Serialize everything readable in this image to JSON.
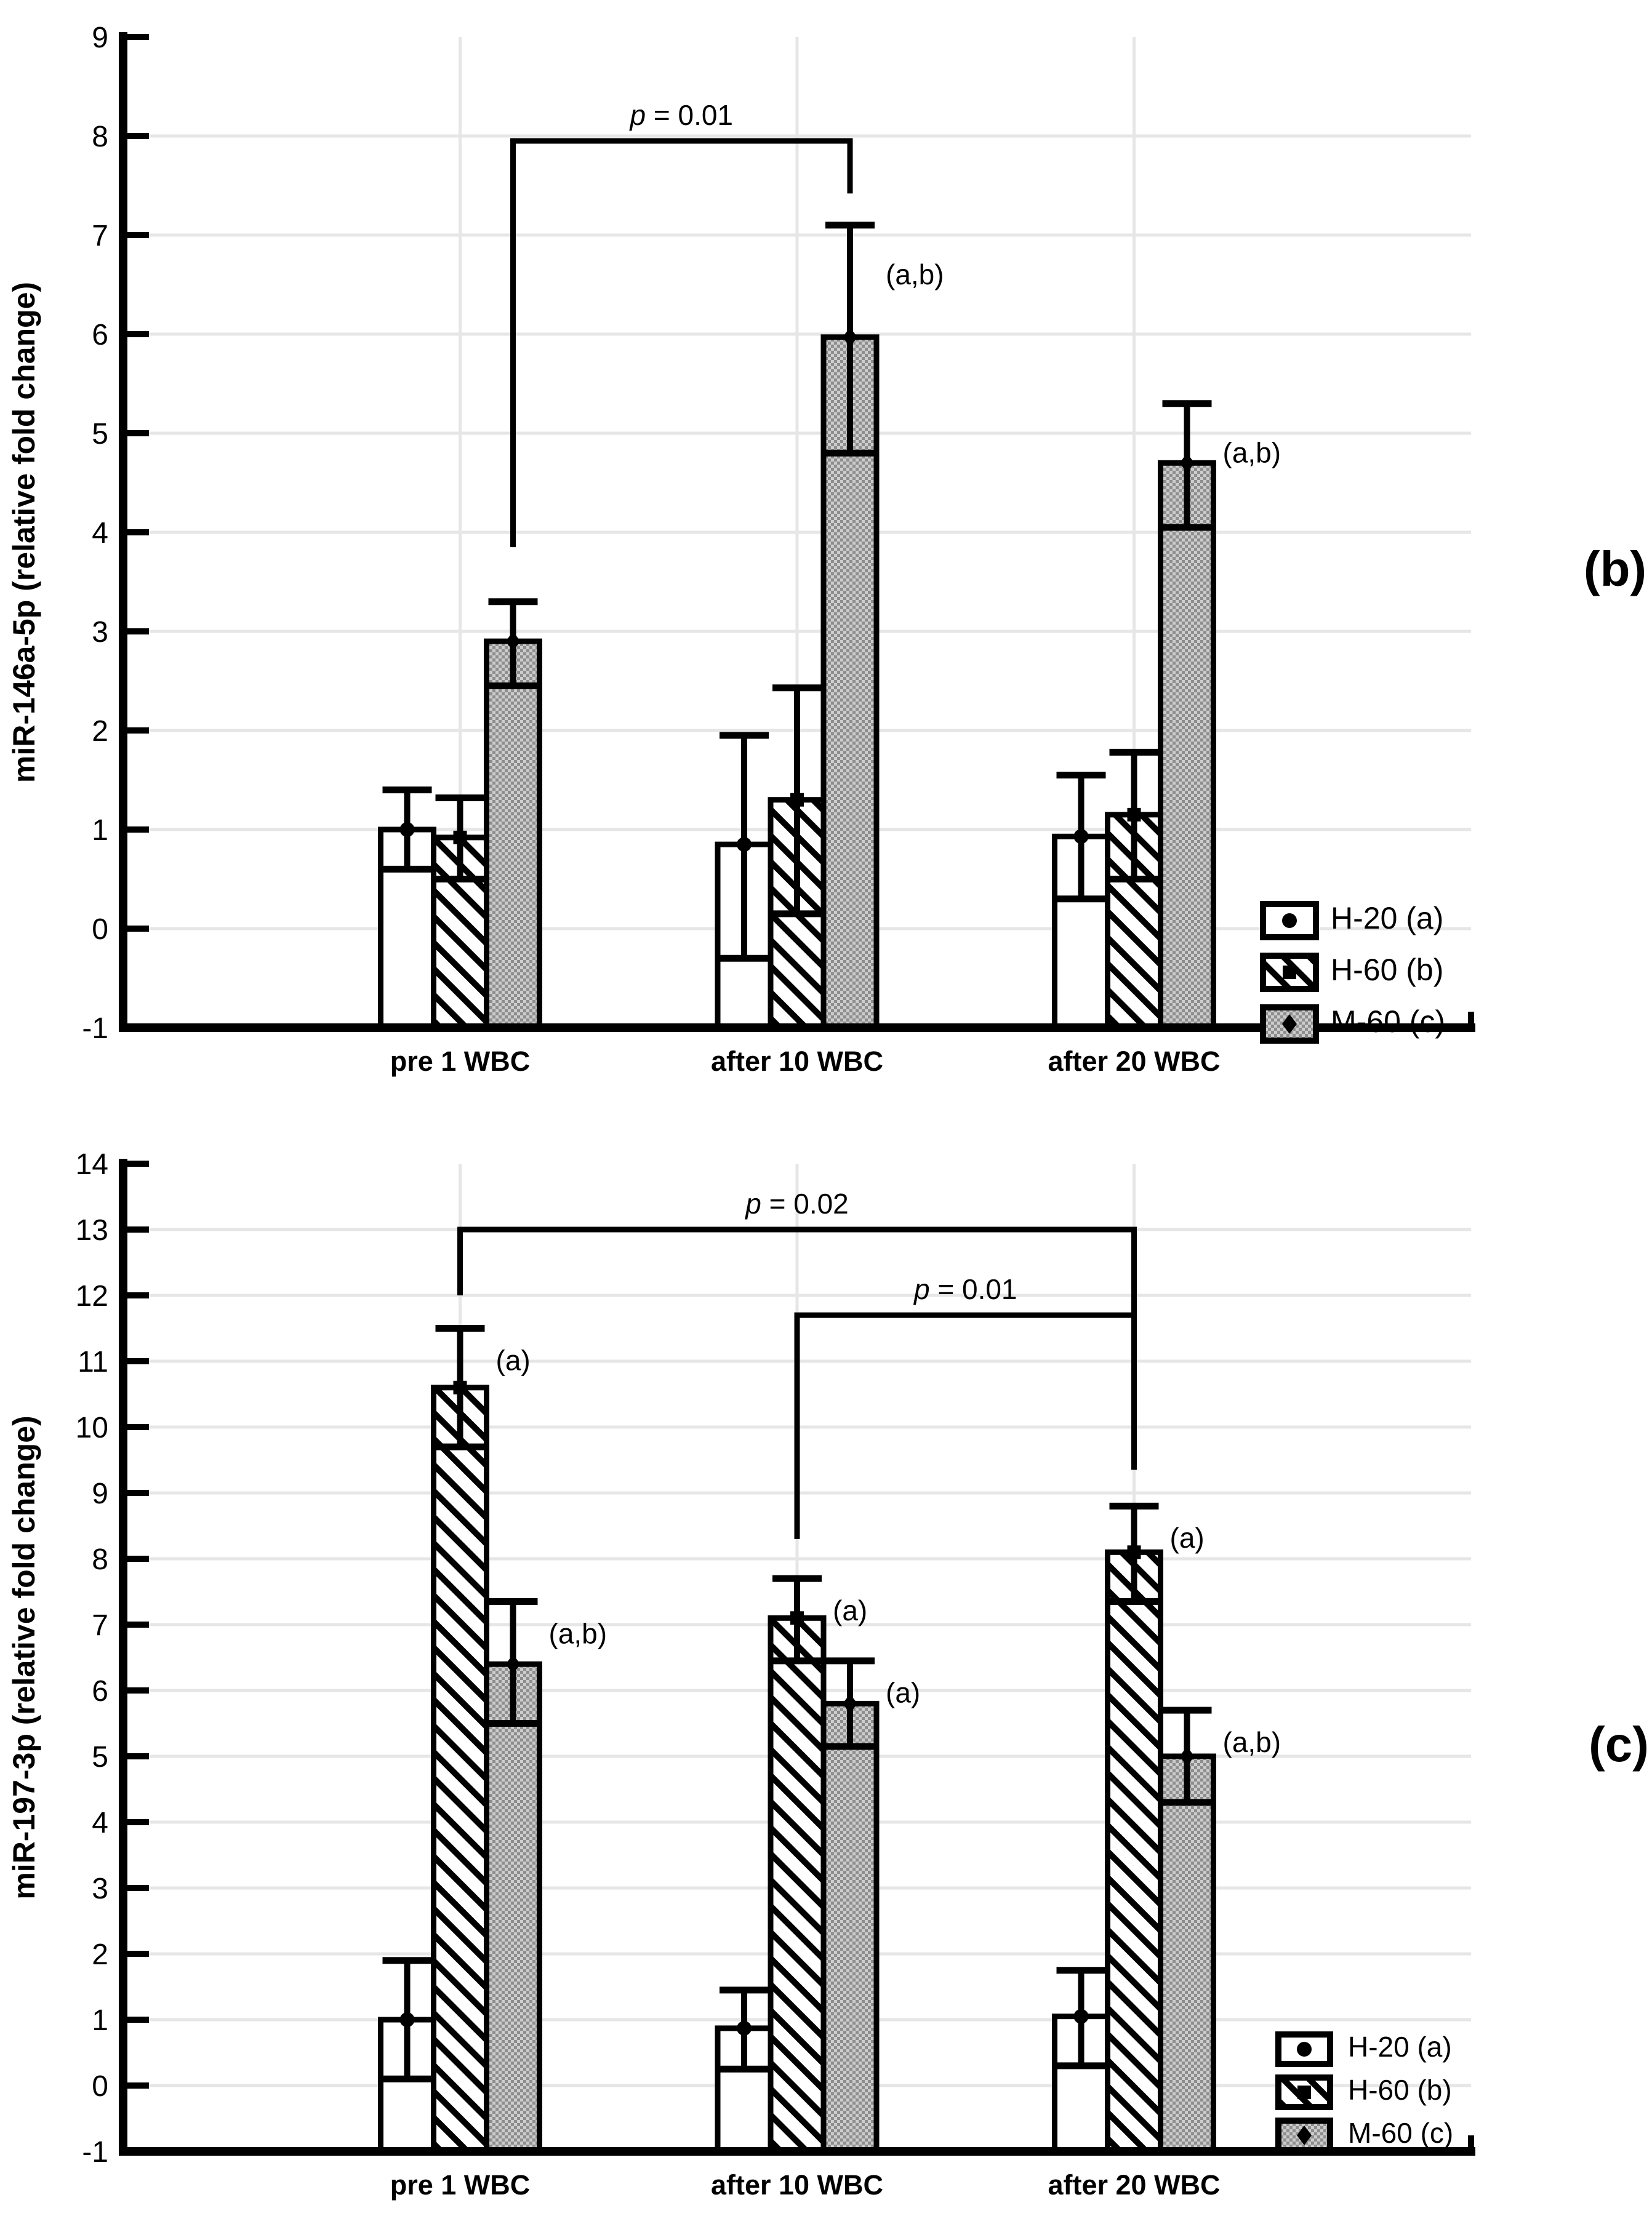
{
  "colors": {
    "ink": "#000000",
    "grid": "#e6e6e6",
    "dot_pattern_light": "#cccccc",
    "dot_pattern_dark": "#8e8e8e",
    "background": "#ffffff"
  },
  "panel_labels": [
    "(b)",
    "(c)"
  ],
  "chart_data": [
    {
      "type": "bar",
      "panel_label": "(b)",
      "title": "",
      "xlabel": "",
      "ylabel": "miR-146a-5p (relative fold change)",
      "ylim": [
        -1,
        9
      ],
      "ytick_step": 1,
      "grid": "horizontal gridlines + vertical gridline at each category center",
      "legend_position": "inside bottom-right",
      "categories": [
        "pre 1 WBC",
        "after 10 WBC",
        "after 20 WBC"
      ],
      "series": [
        {
          "name": "H-20 (a)",
          "marker": "circle",
          "fill_pattern": "plain-white",
          "values": [
            1.0,
            0.85,
            0.93
          ],
          "err_low": [
            0.6,
            -0.3,
            0.3
          ],
          "err_high": [
            1.4,
            1.95,
            1.55
          ],
          "annotations": [
            "",
            "",
            ""
          ]
        },
        {
          "name": "H-60 (b)",
          "marker": "square",
          "fill_pattern": "diagonal-hatch",
          "values": [
            0.92,
            1.3,
            1.15
          ],
          "err_low": [
            0.5,
            0.15,
            0.5
          ],
          "err_high": [
            1.32,
            2.43,
            1.78
          ],
          "annotations": [
            "",
            "",
            ""
          ]
        },
        {
          "name": "M-60 (c)",
          "marker": "diamond",
          "fill_pattern": "gray-dots",
          "values": [
            2.9,
            5.97,
            4.7
          ],
          "err_low": [
            2.45,
            4.8,
            4.05
          ],
          "err_high": [
            3.3,
            7.1,
            5.3
          ],
          "annotations": [
            "",
            "(a,b)",
            "(a,b)"
          ]
        }
      ],
      "significance_brackets": [
        {
          "label": "p = 0.01",
          "y": 7.95,
          "from_category": 0,
          "from_series": 2,
          "from_drop_to": 3.85,
          "to_category": 1,
          "to_series": 2,
          "to_drop_to": 7.42
        }
      ]
    },
    {
      "type": "bar",
      "panel_label": "(c)",
      "title": "",
      "xlabel": "",
      "ylabel": "miR-197-3p (relative fold change)",
      "ylim": [
        -1,
        14
      ],
      "ytick_step": 1,
      "grid": "horizontal gridlines + vertical gridline at each category center",
      "legend_position": "inside bottom-right",
      "categories": [
        "pre 1 WBC",
        "after 10 WBC",
        "after 20 WBC"
      ],
      "series": [
        {
          "name": "H-20 (a)",
          "marker": "circle",
          "fill_pattern": "plain-white",
          "values": [
            1.0,
            0.87,
            1.05
          ],
          "err_low": [
            0.1,
            0.25,
            0.3
          ],
          "err_high": [
            1.9,
            1.45,
            1.75
          ],
          "annotations": [
            "",
            "",
            ""
          ]
        },
        {
          "name": "H-60 (b)",
          "marker": "square",
          "fill_pattern": "diagonal-hatch",
          "values": [
            10.6,
            7.1,
            8.1
          ],
          "err_low": [
            9.7,
            6.45,
            7.35
          ],
          "err_high": [
            11.5,
            7.7,
            8.8
          ],
          "annotations": [
            "(a)",
            "(a)",
            "(a)"
          ]
        },
        {
          "name": "M-60 (c)",
          "marker": "diamond",
          "fill_pattern": "gray-dots",
          "values": [
            6.4,
            5.8,
            5.0
          ],
          "err_low": [
            5.5,
            5.15,
            4.3
          ],
          "err_high": [
            7.35,
            6.45,
            5.7
          ],
          "annotations": [
            "(a,b)",
            "(a)",
            "(a,b)"
          ]
        }
      ],
      "significance_brackets": [
        {
          "label": "p = 0.02",
          "y": 13.0,
          "from_category": 0,
          "from_series": 1,
          "from_drop_to": 12.0,
          "to_category": 2,
          "to_series": 1,
          "to_drop_to": 9.35
        },
        {
          "label": "p = 0.01",
          "y": 11.7,
          "from_category": 1,
          "from_series": 1,
          "from_drop_to": 8.3,
          "to_category": 2,
          "to_series": 1,
          "to_drop_to": 9.35
        }
      ]
    }
  ]
}
